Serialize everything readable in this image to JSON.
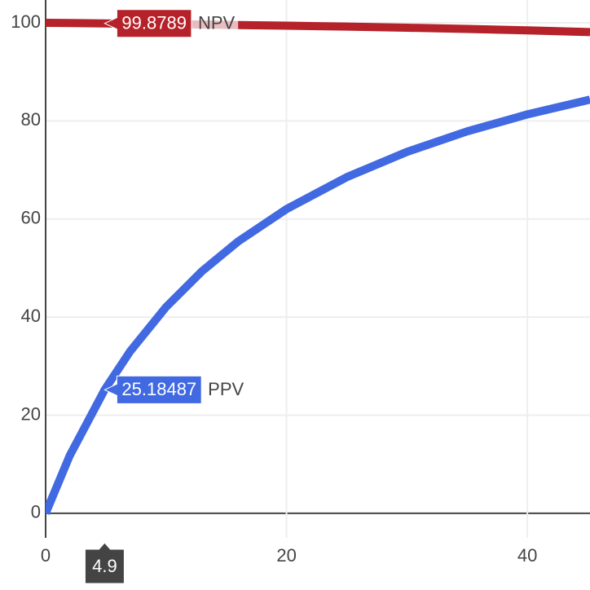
{
  "chart_data": {
    "type": "line",
    "x": [
      0,
      2,
      4.9,
      7,
      10,
      13,
      16,
      20,
      25,
      30,
      35,
      40,
      45.2
    ],
    "series": [
      {
        "name": "NPV",
        "color": "#b5222a",
        "values": [
          100,
          99.95,
          99.88,
          99.82,
          99.74,
          99.65,
          99.55,
          99.42,
          99.22,
          99.0,
          98.75,
          98.46,
          98.1
        ]
      },
      {
        "name": "PPV",
        "color": "#4169e1",
        "values": [
          0,
          11.76,
          25.18,
          32.97,
          42.06,
          49.4,
          55.45,
          62.03,
          68.53,
          73.68,
          77.87,
          81.33,
          84.35
        ]
      }
    ],
    "xlim": [
      0,
      45.2
    ],
    "xticks": [
      0,
      20,
      40
    ],
    "ylim": [
      -5,
      104.65
    ],
    "yticks": [
      0,
      20,
      40,
      60,
      80,
      100
    ],
    "grid": true,
    "hover": {
      "x": 4.9,
      "values": [
        99.8789,
        25.18487
      ]
    }
  }
}
